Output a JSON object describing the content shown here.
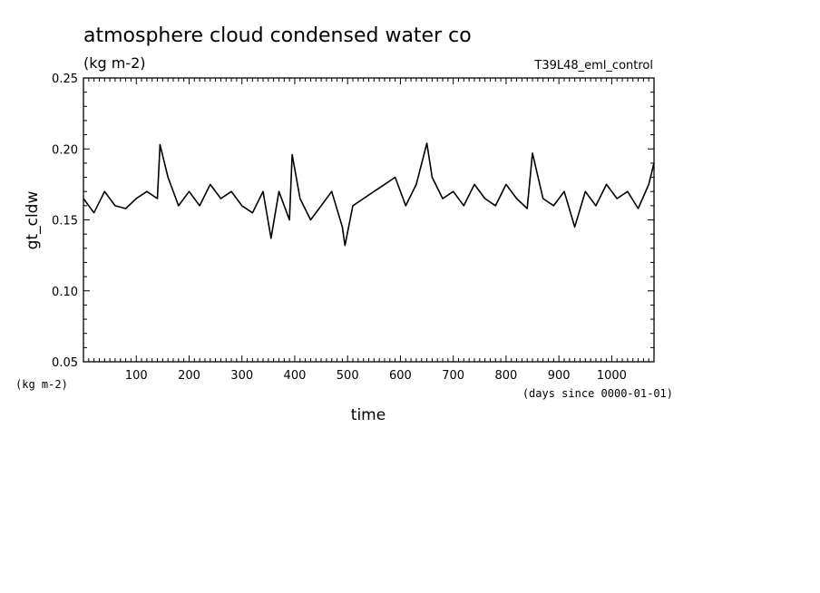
{
  "chart_data": {
    "type": "line",
    "title": "atmosphere cloud condensed water co",
    "subtitle_units": "(kg m-2)",
    "experiment": "T39L48_eml_control",
    "xlabel": "time",
    "xunits": "(days since 0000-01-01)",
    "ylabel": "gt_cldw",
    "yunits": "(kg m-2)",
    "xlim": [
      0,
      1080
    ],
    "ylim": [
      0.05,
      0.25
    ],
    "xticks": [
      100,
      200,
      300,
      400,
      500,
      600,
      700,
      800,
      900,
      1000
    ],
    "yticks": [
      0.05,
      0.1,
      0.15,
      0.2,
      0.25
    ],
    "ytick_labels": [
      "0.05",
      "0.10",
      "0.15",
      "0.20",
      "0.25"
    ],
    "grid": false,
    "series": [
      {
        "x": [
          0,
          20,
          40,
          60,
          80,
          100,
          120,
          140,
          145,
          160,
          180,
          200,
          220,
          240,
          260,
          280,
          300,
          320,
          340,
          355,
          370,
          390,
          395,
          410,
          430,
          450,
          470,
          490,
          495,
          510,
          530,
          550,
          570,
          590,
          610,
          630,
          650,
          660,
          680,
          700,
          720,
          740,
          760,
          780,
          800,
          820,
          840,
          850,
          870,
          890,
          910,
          930,
          950,
          970,
          990,
          1010,
          1030,
          1050,
          1070,
          1080
        ],
        "y": [
          0.165,
          0.155,
          0.17,
          0.16,
          0.158,
          0.165,
          0.17,
          0.165,
          0.203,
          0.18,
          0.16,
          0.17,
          0.16,
          0.175,
          0.165,
          0.17,
          0.16,
          0.155,
          0.17,
          0.137,
          0.17,
          0.15,
          0.196,
          0.165,
          0.15,
          0.16,
          0.17,
          0.145,
          0.132,
          0.16,
          0.165,
          0.17,
          0.175,
          0.18,
          0.16,
          0.175,
          0.204,
          0.18,
          0.165,
          0.17,
          0.16,
          0.175,
          0.165,
          0.16,
          0.175,
          0.165,
          0.158,
          0.197,
          0.165,
          0.16,
          0.17,
          0.145,
          0.17,
          0.16,
          0.175,
          0.165,
          0.17,
          0.158,
          0.175,
          0.19
        ]
      }
    ]
  }
}
